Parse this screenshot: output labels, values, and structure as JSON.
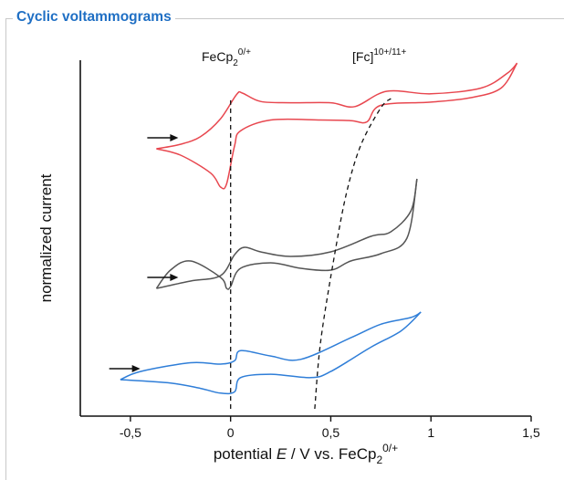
{
  "panel": {
    "title": "Cyclic voltammograms"
  },
  "chart_data": {
    "type": "line",
    "title": "Cyclic voltammograms",
    "xlabel": {
      "prefix": "potential ",
      "var": "E",
      "mid": " / V vs. FeCp",
      "sub": "2",
      "sup": "0/+"
    },
    "ylabel": "normalized current",
    "xlim": [
      -0.75,
      1.5
    ],
    "x_ticks": [
      -0.5,
      0,
      0.5,
      1,
      1.5
    ],
    "x_tick_labels": [
      "-0,5",
      "0",
      "0,5",
      "1",
      "1,5"
    ],
    "y_ticks": false,
    "grid": false,
    "annotations": [
      {
        "id": "fecp2",
        "base": "FeCp",
        "sub": "2",
        "sup": "0/+"
      },
      {
        "id": "fc",
        "base": "[Fc]",
        "sub": "",
        "sup": "10+/11+"
      }
    ],
    "series": [
      {
        "color": "#e8474f",
        "scan_start_arrow_x": -0.27,
        "upper": [
          [
            -0.37,
            0.0
          ],
          [
            -0.25,
            0.07
          ],
          [
            -0.15,
            0.19
          ],
          [
            -0.05,
            0.47
          ],
          [
            0.03,
            0.85
          ],
          [
            0.06,
            0.87
          ],
          [
            0.15,
            0.74
          ],
          [
            0.3,
            0.72
          ],
          [
            0.5,
            0.72
          ],
          [
            0.62,
            0.66
          ],
          [
            0.78,
            0.9
          ],
          [
            1.0,
            0.86
          ],
          [
            1.25,
            0.95
          ],
          [
            1.38,
            1.18
          ],
          [
            1.43,
            1.34
          ]
        ],
        "lower": [
          [
            -0.37,
            0.0
          ],
          [
            -0.25,
            -0.1
          ],
          [
            -0.1,
            -0.38
          ],
          [
            -0.05,
            -0.6
          ],
          [
            -0.02,
            -0.55
          ],
          [
            0.02,
            0.05
          ],
          [
            0.05,
            0.28
          ],
          [
            0.2,
            0.45
          ],
          [
            0.45,
            0.45
          ],
          [
            0.6,
            0.44
          ],
          [
            0.68,
            0.42
          ],
          [
            0.75,
            0.68
          ],
          [
            1.0,
            0.73
          ],
          [
            1.2,
            0.8
          ],
          [
            1.35,
            0.95
          ],
          [
            1.43,
            1.34
          ]
        ]
      },
      {
        "color": "#555555",
        "scan_start_arrow_x": -0.27,
        "upper": [
          [
            -0.37,
            0.0
          ],
          [
            -0.2,
            0.08
          ],
          [
            -0.05,
            0.14
          ],
          [
            0.02,
            0.37
          ],
          [
            0.07,
            0.45
          ],
          [
            0.15,
            0.4
          ],
          [
            0.3,
            0.35
          ],
          [
            0.5,
            0.4
          ],
          [
            0.7,
            0.57
          ],
          [
            0.8,
            0.62
          ],
          [
            0.9,
            0.85
          ],
          [
            0.93,
            1.2
          ]
        ],
        "lower": [
          [
            -0.37,
            0.0
          ],
          [
            -0.3,
            0.2
          ],
          [
            -0.2,
            0.3
          ],
          [
            -0.05,
            0.12
          ],
          [
            -0.02,
            0.0
          ],
          [
            0.0,
            0.02
          ],
          [
            0.05,
            0.22
          ],
          [
            0.2,
            0.28
          ],
          [
            0.35,
            0.22
          ],
          [
            0.5,
            0.2
          ],
          [
            0.6,
            0.3
          ],
          [
            0.75,
            0.38
          ],
          [
            0.88,
            0.55
          ],
          [
            0.93,
            1.2
          ]
        ]
      },
      {
        "color": "#2f7ed8",
        "scan_start_arrow_x": -0.46,
        "upper": [
          [
            -0.55,
            0.0
          ],
          [
            -0.45,
            0.12
          ],
          [
            -0.2,
            0.25
          ],
          [
            -0.05,
            0.23
          ],
          [
            0.02,
            0.28
          ],
          [
            0.05,
            0.43
          ],
          [
            0.2,
            0.35
          ],
          [
            0.35,
            0.3
          ],
          [
            0.6,
            0.62
          ],
          [
            0.75,
            0.82
          ],
          [
            0.9,
            0.92
          ],
          [
            0.95,
            1.0
          ]
        ],
        "lower": [
          [
            -0.55,
            0.0
          ],
          [
            -0.3,
            -0.05
          ],
          [
            -0.15,
            -0.13
          ],
          [
            -0.05,
            -0.2
          ],
          [
            0.02,
            -0.18
          ],
          [
            0.05,
            0.03
          ],
          [
            0.2,
            0.08
          ],
          [
            0.4,
            0.03
          ],
          [
            0.5,
            0.12
          ],
          [
            0.7,
            0.48
          ],
          [
            0.85,
            0.72
          ],
          [
            0.95,
            1.0
          ]
        ]
      }
    ],
    "guides": [
      {
        "id": "fecp2-line",
        "points": [
          [
            0.0,
            0.0
          ],
          [
            0.0,
            1.0
          ]
        ]
      },
      {
        "id": "fc-line",
        "points": [
          [
            0.42,
            0.0
          ],
          [
            0.45,
            0.22
          ],
          [
            0.52,
            0.5
          ],
          [
            0.58,
            0.7
          ],
          [
            0.65,
            0.85
          ],
          [
            0.75,
            0.97
          ],
          [
            0.8,
            1.0
          ]
        ]
      }
    ]
  }
}
